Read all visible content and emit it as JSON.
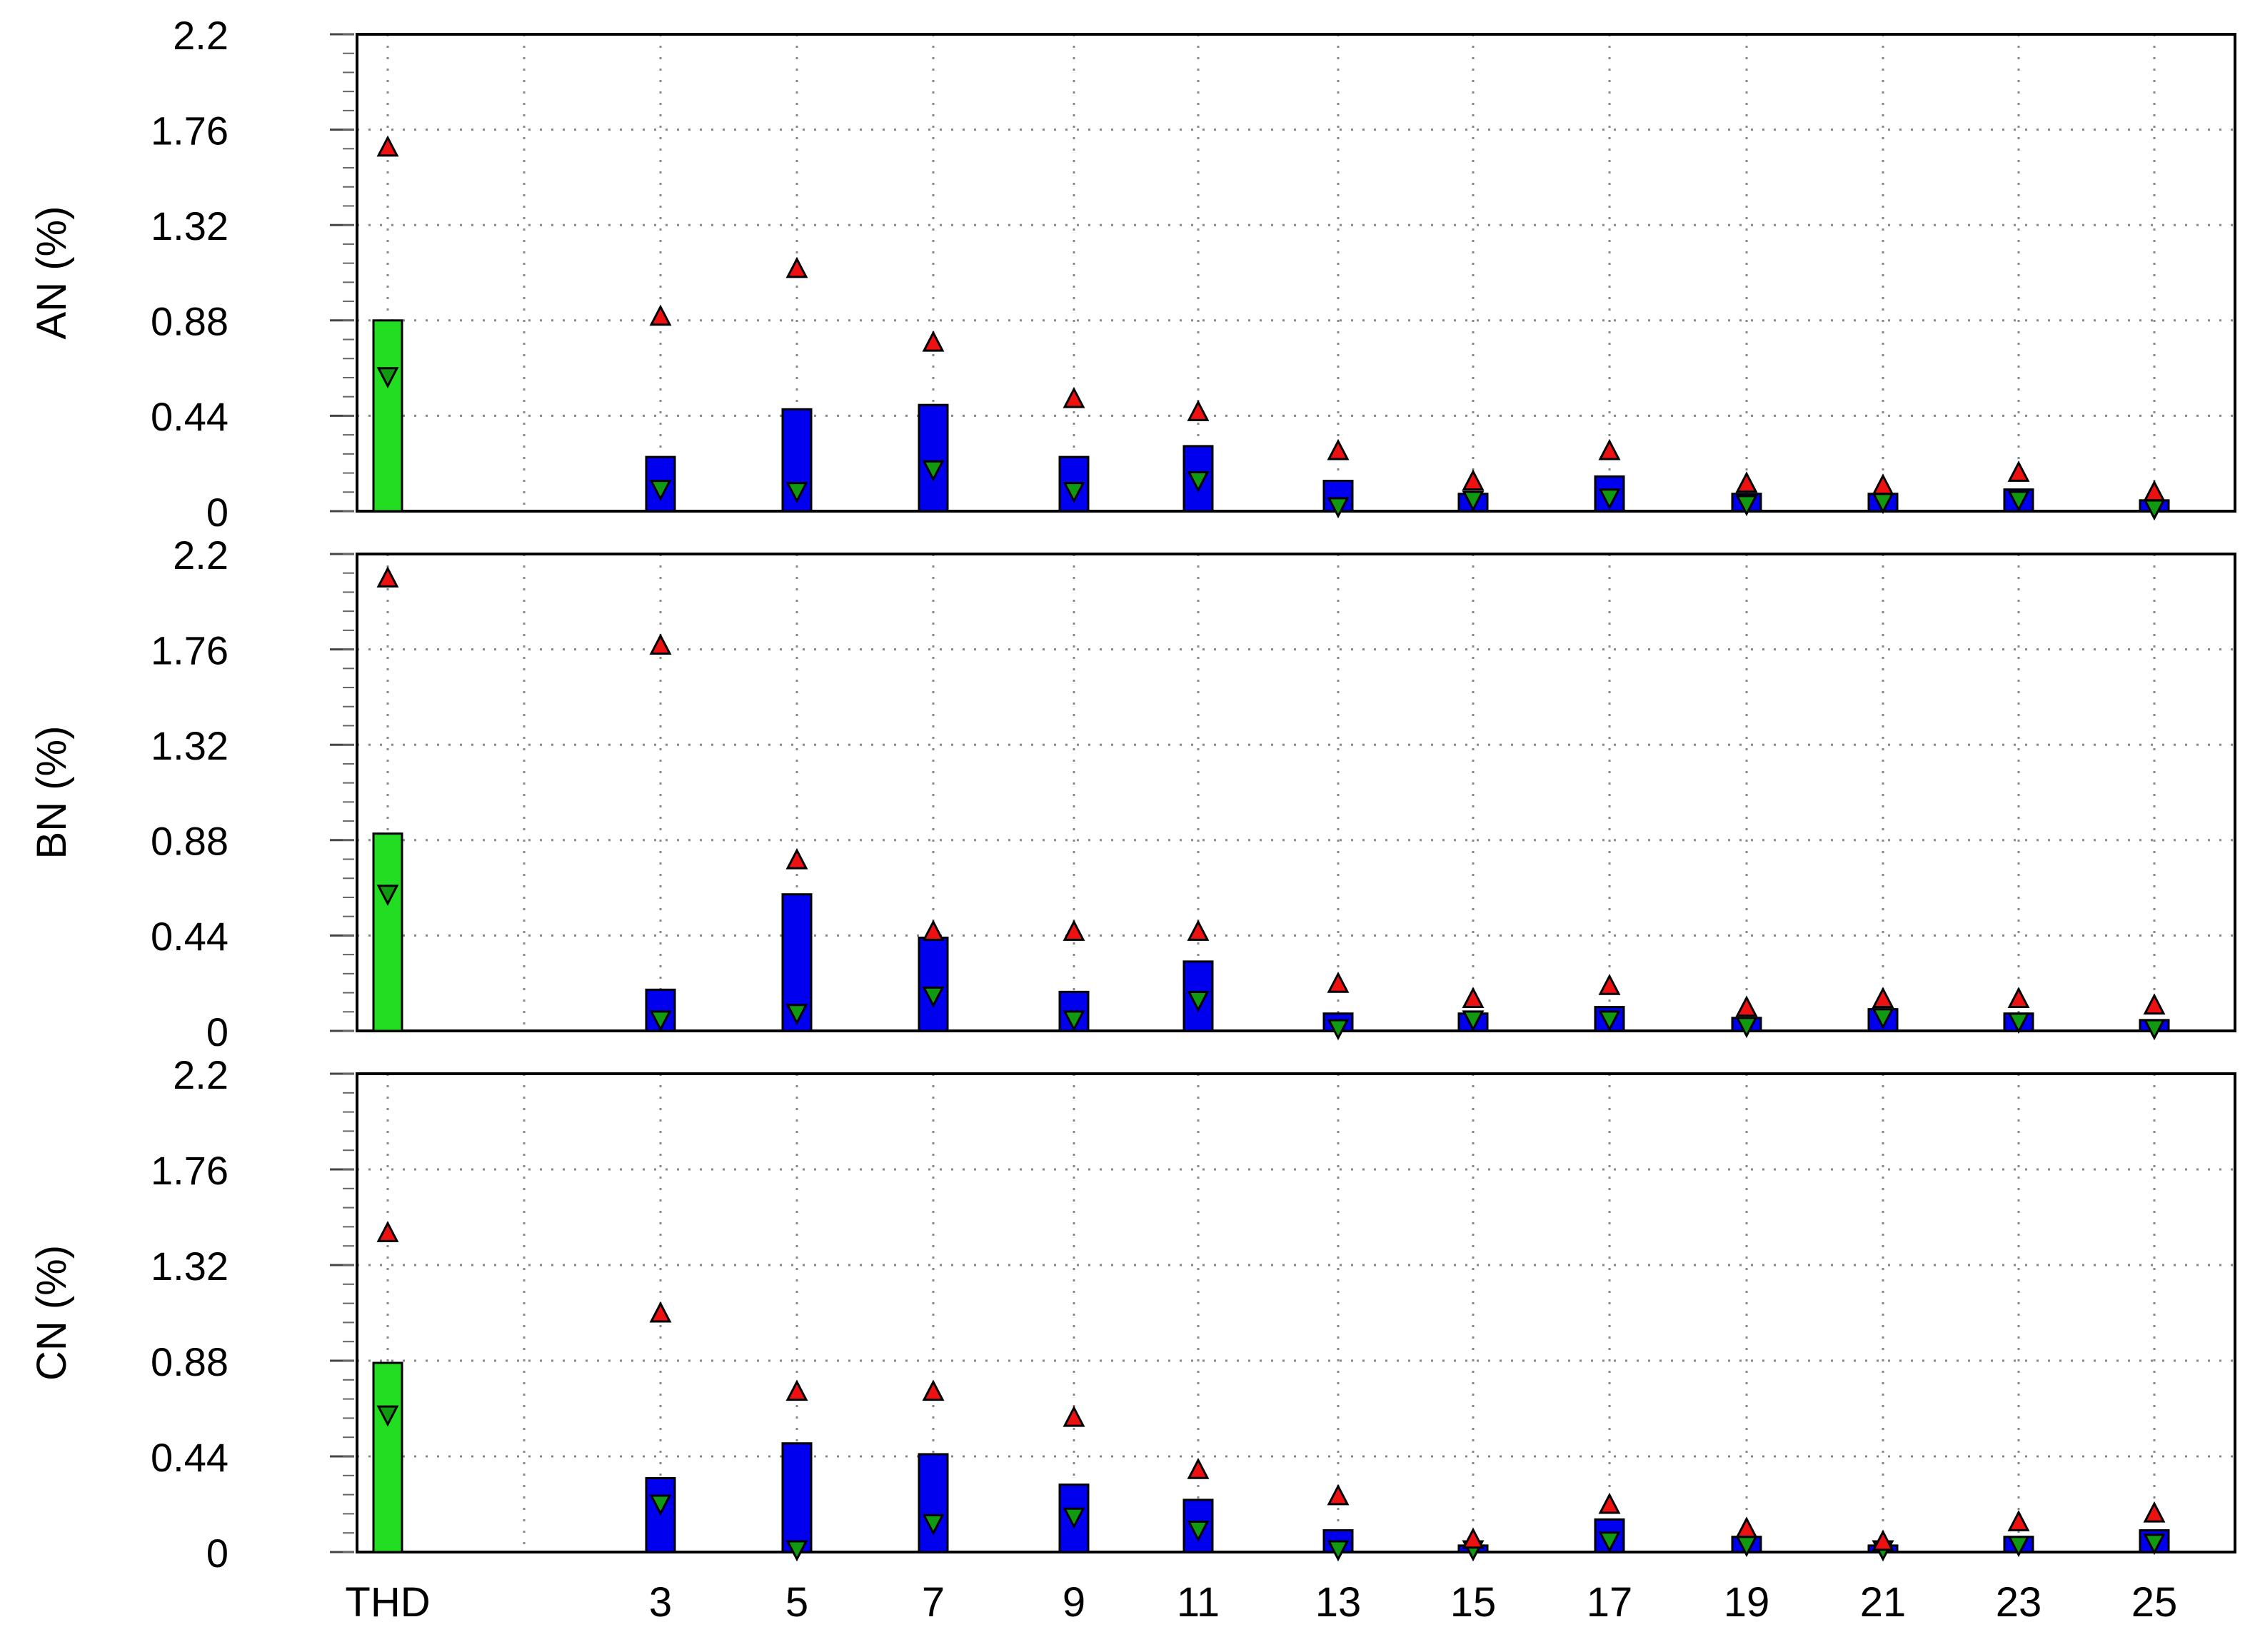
{
  "chart_data": {
    "type": "bar",
    "categories": [
      "THD",
      "3",
      "5",
      "7",
      "9",
      "11",
      "13",
      "15",
      "17",
      "19",
      "21",
      "23",
      "25"
    ],
    "x_axis_labels": [
      "THD",
      "3",
      "5",
      "7",
      "9",
      "11",
      "13",
      "15",
      "17",
      "19",
      "21",
      "23",
      "25"
    ],
    "y_ticks": [
      "2.2",
      "1.76",
      "1.32",
      "0.88",
      "0.44",
      "0"
    ],
    "ylim": [
      0,
      2.2
    ],
    "grid": true,
    "colors": {
      "thd_bar": "#22dd22",
      "harmonic_bar": "#0000ee",
      "max_marker": "#ee1111",
      "min_marker": "#119911"
    },
    "panels": [
      {
        "ylabel": "AN (%)",
        "values": [
          0.88,
          0.25,
          0.47,
          0.49,
          0.25,
          0.3,
          0.14,
          0.08,
          0.16,
          0.08,
          0.08,
          0.1,
          0.05
        ],
        "max": [
          1.68,
          0.9,
          1.12,
          0.78,
          0.52,
          0.46,
          0.28,
          0.14,
          0.28,
          0.13,
          0.12,
          0.18,
          0.09
        ],
        "min": [
          0.62,
          0.1,
          0.09,
          0.19,
          0.09,
          0.14,
          0.02,
          0.05,
          0.06,
          0.03,
          0.04,
          0.05,
          0.01
        ]
      },
      {
        "ylabel": "BN (%)",
        "values": [
          0.91,
          0.19,
          0.63,
          0.43,
          0.18,
          0.32,
          0.08,
          0.08,
          0.11,
          0.06,
          0.1,
          0.08,
          0.05
        ],
        "max": [
          2.09,
          1.78,
          0.79,
          0.46,
          0.46,
          0.46,
          0.22,
          0.15,
          0.21,
          0.11,
          0.15,
          0.15,
          0.12
        ],
        "min": [
          0.63,
          0.05,
          0.08,
          0.16,
          0.05,
          0.14,
          0.01,
          0.05,
          0.05,
          0.02,
          0.06,
          0.04,
          0.01
        ]
      },
      {
        "ylabel": "CN (%)",
        "values": [
          0.87,
          0.34,
          0.5,
          0.45,
          0.31,
          0.24,
          0.1,
          0.03,
          0.15,
          0.07,
          0.03,
          0.07,
          0.1
        ],
        "max": [
          1.47,
          1.1,
          0.74,
          0.74,
          0.62,
          0.38,
          0.26,
          0.06,
          0.22,
          0.11,
          0.05,
          0.14,
          0.18
        ],
        "min": [
          0.63,
          0.22,
          0.01,
          0.13,
          0.16,
          0.1,
          0.01,
          0.01,
          0.05,
          0.03,
          0.01,
          0.03,
          0.04
        ]
      }
    ]
  }
}
